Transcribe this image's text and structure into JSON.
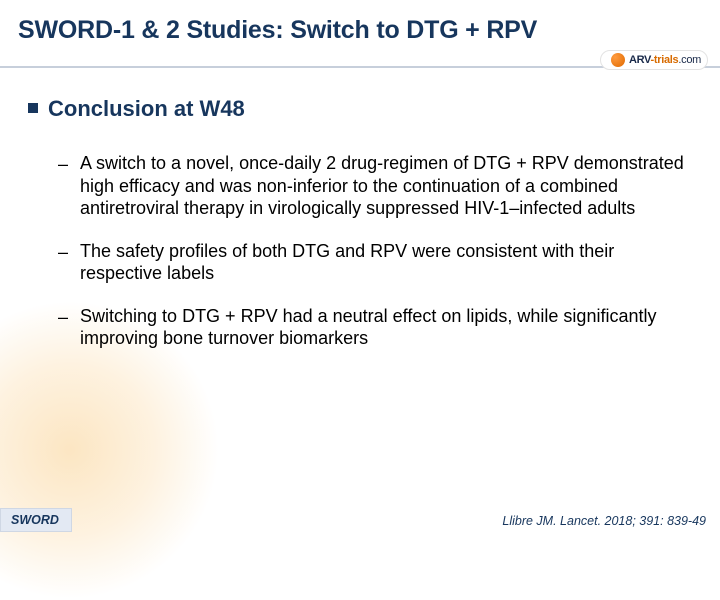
{
  "colors": {
    "title": "#17365d",
    "divider": "#c7cfdb",
    "body_text": "#000000",
    "footer_bg": "#e3e9f3",
    "glow": "rgba(247,183,82,0.35)"
  },
  "title": "SWORD-1 & 2 Studies: Switch to DTG + RPV",
  "logo": {
    "part1": "ARV",
    "part2": "-trials",
    "part3": ".com"
  },
  "section": {
    "heading": "Conclusion at W48",
    "items": [
      "A switch to a novel, once-daily 2 drug-regimen of DTG + RPV demonstrated high efficacy and was non-inferior to the continuation of a combined antiretroviral therapy in virologically suppressed HIV-1–infected adults",
      "The safety profiles of both DTG and RPV were consistent with their respective labels",
      "Switching to DTG + RPV had a neutral effect on lipids, while significantly improving bone turnover biomarkers"
    ]
  },
  "footer": {
    "left": "SWORD",
    "right": "Llibre JM. Lancet. 2018; 391: 839-49"
  }
}
